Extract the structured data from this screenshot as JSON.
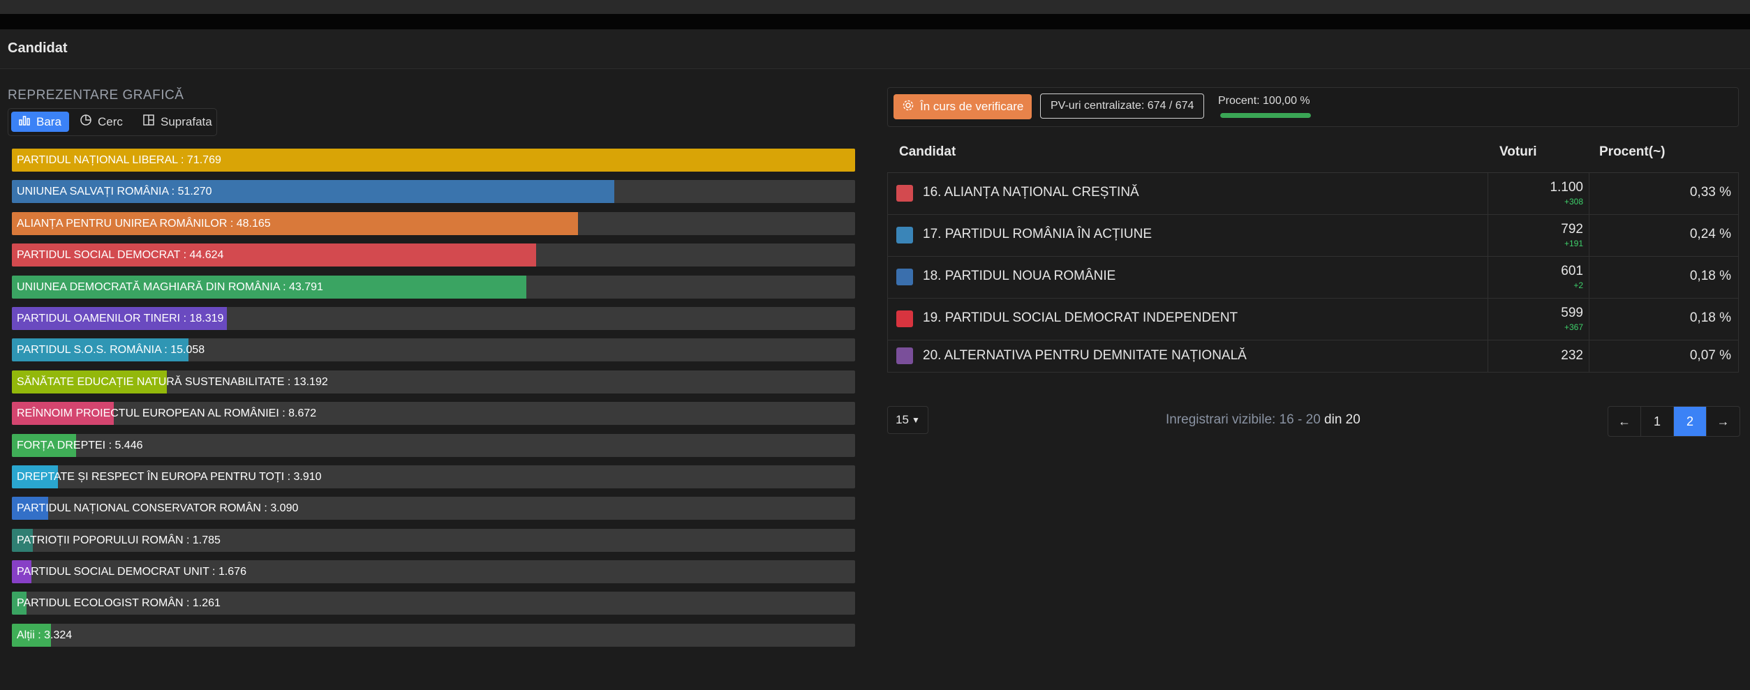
{
  "header": {
    "title": "Candidat"
  },
  "chart_section": {
    "label": "REPREZENTARE GRAFICĂ",
    "toggle": [
      {
        "label": "Bara",
        "icon": "bar-chart-icon",
        "active": true
      },
      {
        "label": "Cerc",
        "icon": "pie-chart-icon",
        "active": false
      },
      {
        "label": "Suprafata",
        "icon": "treemap-icon",
        "active": false
      }
    ]
  },
  "chart_data": {
    "type": "bar",
    "orientation": "horizontal",
    "categories": [
      "PARTIDUL NAȚIONAL LIBERAL",
      "UNIUNEA SALVAȚI ROMÂNIA",
      "ALIANȚA PENTRU UNIREA ROMÂNILOR",
      "PARTIDUL SOCIAL DEMOCRAT",
      "UNIUNEA DEMOCRATĂ MAGHIARĂ DIN ROMÂNIA",
      "PARTIDUL OAMENILOR TINERI",
      "PARTIDUL S.O.S. ROMÂNIA",
      "SĂNĂTATE EDUCAȚIE NATURĂ SUSTENABILITATE",
      "REÎNNOIM PROIECTUL EUROPEAN AL ROMÂNIEI",
      "FORȚA DREPTEI",
      "DREPTATE ȘI RESPECT ÎN EUROPA PENTRU TOȚI",
      "PARTIDUL NAȚIONAL CONSERVATOR ROMÂN",
      "PATRIOȚII POPORULUI ROMÂN",
      "PARTIDUL SOCIAL DEMOCRAT UNIT",
      "PARTIDUL ECOLOGIST ROMÂN",
      "Alții"
    ],
    "values": [
      71769,
      51270,
      48165,
      44624,
      43791,
      18319,
      15058,
      13192,
      8672,
      5446,
      3910,
      3090,
      1785,
      1676,
      1261,
      3324
    ],
    "labels": [
      "71.769",
      "51.270",
      "48.165",
      "44.624",
      "43.791",
      "18.319",
      "15.058",
      "13.192",
      "8.672",
      "5.446",
      "3.910",
      "3.090",
      "1.785",
      "1.676",
      "1.261",
      "3.324"
    ],
    "colors": [
      "#d9a406",
      "#3a74ad",
      "#d9793a",
      "#d34a4f",
      "#3aa462",
      "#6a4ac0",
      "#2f96b4",
      "#93b80b",
      "#d4456f",
      "#3fae57",
      "#2aa6cf",
      "#3370c8",
      "#2f7f72",
      "#8740c6",
      "#3aa462",
      "#3fae57"
    ],
    "xlim": [
      0,
      71769
    ]
  },
  "status": {
    "badge_label": "În curs de verificare",
    "pv_label": "PV-uri centralizate: 674 / 674",
    "percent_label": "Procent: 100,00 %",
    "percent_value": 100
  },
  "table": {
    "headers": {
      "candidate": "Candidat",
      "votes": "Voturi",
      "percent": "Procent(~)"
    },
    "rows": [
      {
        "name": "16. ALIANȚA NAȚIONAL CREȘTINĂ",
        "votes": "1.100",
        "delta": "+308",
        "percent": "0,33 %",
        "color": "#d34a4f"
      },
      {
        "name": "17. PARTIDUL ROMÂNIA ÎN ACȚIUNE",
        "votes": "792",
        "delta": "+191",
        "percent": "0,24 %",
        "color": "#3a85b8"
      },
      {
        "name": "18. PARTIDUL NOUA ROMÂNIE",
        "votes": "601",
        "delta": "+2",
        "percent": "0,18 %",
        "color": "#3a6fad"
      },
      {
        "name": "19. PARTIDUL SOCIAL DEMOCRAT INDEPENDENT",
        "votes": "599",
        "delta": "+367",
        "percent": "0,18 %",
        "color": "#d8343f"
      },
      {
        "name": "20. ALTERNATIVA PENTRU DEMNITATE NAȚIONALĂ",
        "votes": "232",
        "delta": "",
        "percent": "0,07 %",
        "color": "#7a4f9a"
      }
    ]
  },
  "footer": {
    "page_size": "15",
    "records_prefix": "Inregistrari vizibile: 16 - 20",
    "records_suffix": "din 20",
    "pagination": {
      "prev": "←",
      "pages": [
        "1",
        "2"
      ],
      "current": "2",
      "next": "→"
    }
  }
}
